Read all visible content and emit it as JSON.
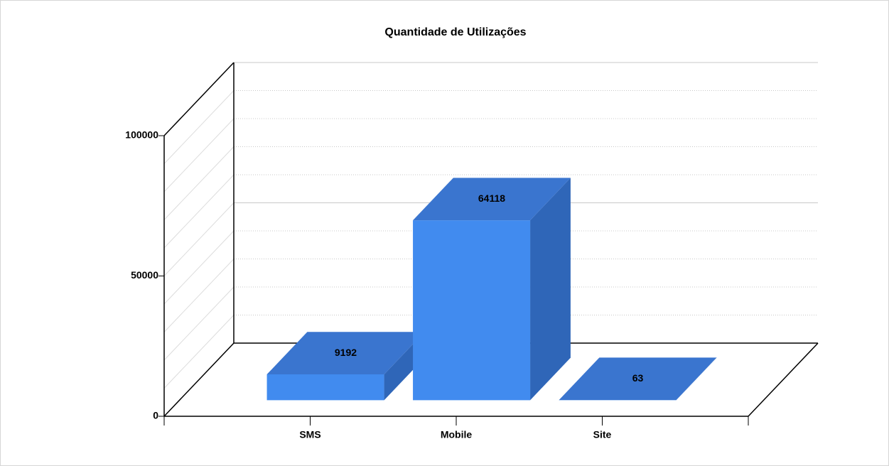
{
  "chart_data": {
    "type": "bar3d",
    "title": "Quantidade de Utilizações",
    "categories": [
      "SMS",
      "Mobile",
      "Site"
    ],
    "values": [
      9192,
      64118,
      63
    ],
    "color": "#418bef",
    "top_color": "#3a75cf",
    "side_color": "#2f66b8",
    "ylim": [
      0,
      100000
    ],
    "yticks": [
      0,
      50000,
      100000
    ],
    "minor_yticks": [
      10000,
      20000,
      30000,
      40000,
      60000,
      70000,
      80000,
      90000
    ],
    "grid": true
  }
}
